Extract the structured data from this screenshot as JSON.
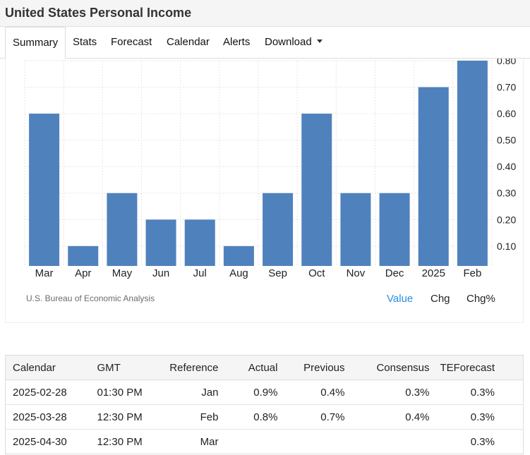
{
  "page": {
    "title": "United States Personal Income"
  },
  "tabs": [
    "Summary",
    "Stats",
    "Forecast",
    "Calendar",
    "Alerts",
    "Download"
  ],
  "source": "U.S. Bureau of Economic Analysis",
  "toggles": [
    "Value",
    "Chg",
    "Chg%"
  ],
  "colors": {
    "bar": "#4f81bd",
    "accent": "#2a8ee0",
    "grid": "#e6e6e6"
  },
  "chart_data": {
    "type": "bar",
    "categories": [
      "Mar",
      "Apr",
      "May",
      "Jun",
      "Jul",
      "Aug",
      "Sep",
      "Oct",
      "Nov",
      "Dec",
      "2025",
      "Feb"
    ],
    "values": [
      0.6,
      0.1,
      0.3,
      0.2,
      0.2,
      0.1,
      0.3,
      0.6,
      0.3,
      0.3,
      0.7,
      0.8
    ],
    "ylim": [
      0.025,
      0.8
    ],
    "yticks": [
      "0.10",
      "0.20",
      "0.30",
      "0.40",
      "0.50",
      "0.60",
      "0.70",
      "0.80"
    ],
    "ytick_values": [
      0.1,
      0.2,
      0.3,
      0.4,
      0.5,
      0.6,
      0.7,
      0.8
    ],
    "grid": true,
    "y_axis_position": "right"
  },
  "calendar": {
    "headers": [
      "Calendar",
      "GMT",
      "Reference",
      "Actual",
      "Previous",
      "Consensus",
      "TEForecast"
    ],
    "rows": [
      [
        "2025-02-28",
        "01:30 PM",
        "Jan",
        "0.9%",
        "0.4%",
        "0.3%",
        "0.3%"
      ],
      [
        "2025-03-28",
        "12:30 PM",
        "Feb",
        "0.8%",
        "0.7%",
        "0.4%",
        "0.3%"
      ],
      [
        "2025-04-30",
        "12:30 PM",
        "Mar",
        "",
        "",
        "",
        "0.3%"
      ]
    ]
  }
}
